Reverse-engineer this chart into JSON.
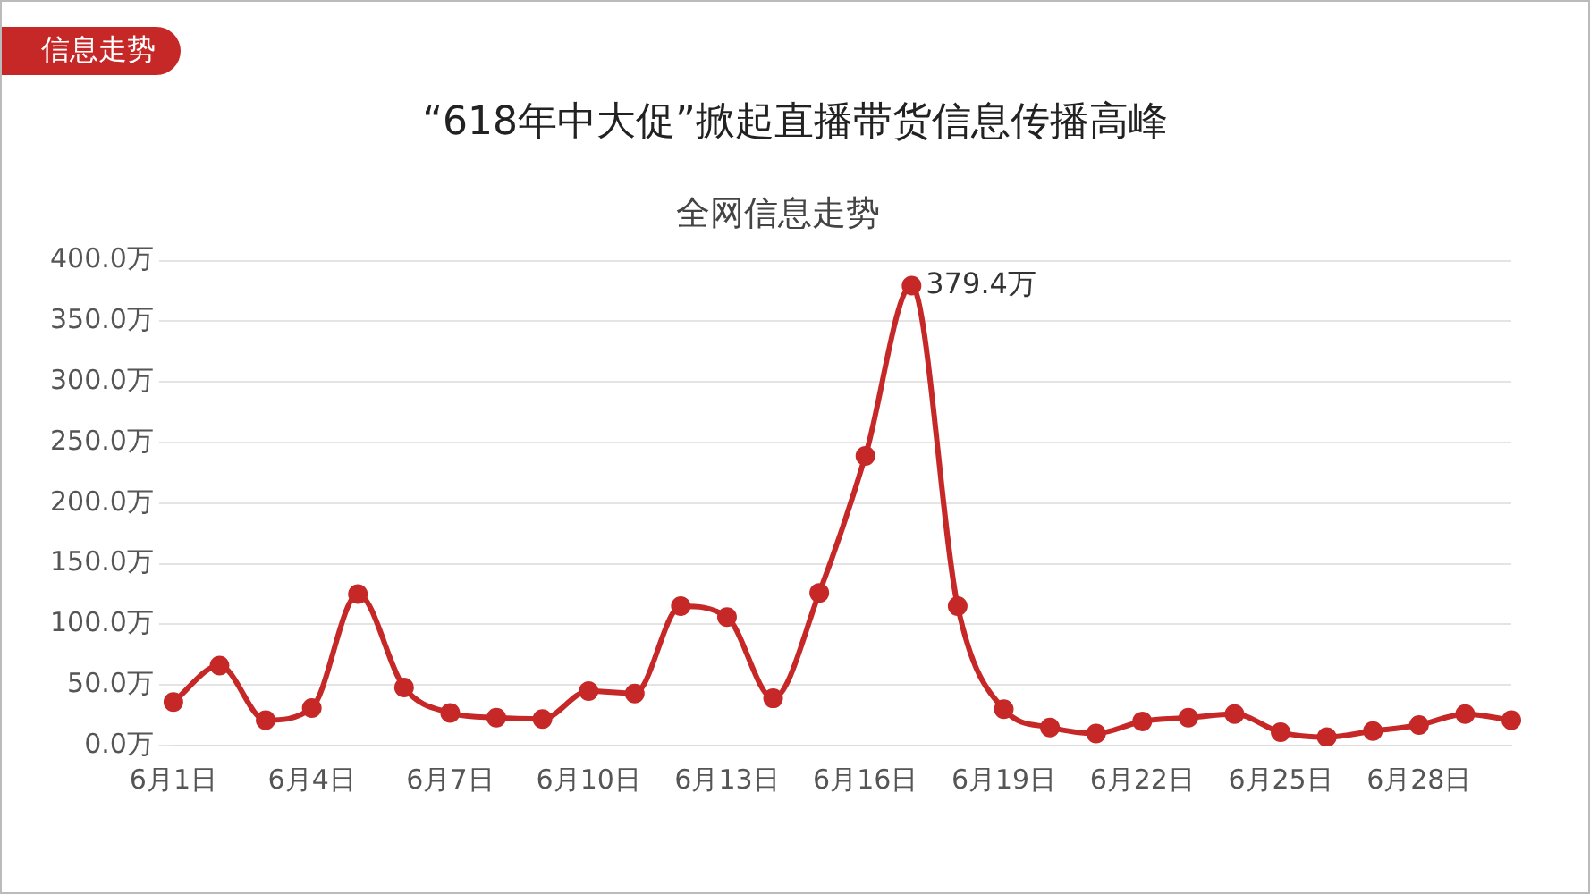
{
  "chart_data": {
    "type": "line",
    "title": "“618年中大促”掀起直播带货信息传播高峰",
    "subtitle": "全网信息走势",
    "annotations": [
      "信息走势"
    ],
    "categories": [
      "6月1日",
      null,
      null,
      "6月4日",
      null,
      null,
      "6月7日",
      null,
      null,
      "6月10日",
      null,
      null,
      "6月13日",
      null,
      null,
      "6月16日",
      null,
      null,
      "6月19日",
      null,
      null,
      "6月22日",
      null,
      null,
      "6月25日",
      null,
      null,
      "6月28日",
      null,
      null
    ],
    "series": [
      {
        "color": "#c62828",
        "values": [
          36,
          66,
          21,
          31,
          125,
          48,
          27,
          23,
          22,
          45,
          43,
          115,
          106,
          39,
          126,
          239,
          379.4,
          115,
          30,
          15,
          10,
          20,
          23,
          26,
          11,
          7,
          12,
          17,
          26,
          21
        ],
        "value_labels": [
          null,
          null,
          null,
          null,
          null,
          null,
          null,
          null,
          null,
          null,
          null,
          null,
          null,
          null,
          null,
          null,
          "379.4万",
          null,
          null,
          null,
          null,
          null,
          null,
          null,
          null,
          null,
          null,
          null,
          null,
          null
        ]
      }
    ],
    "ylim": [
      0,
      400
    ],
    "yticks": [
      {
        "value": 0,
        "label": "0.0万"
      },
      {
        "value": 50,
        "label": "50.0万"
      },
      {
        "value": 100,
        "label": "100.0万"
      },
      {
        "value": 150,
        "label": "150.0万"
      },
      {
        "value": 200,
        "label": "200.0万"
      },
      {
        "value": 250,
        "label": "250.0万"
      },
      {
        "value": 300,
        "label": "300.0万"
      },
      {
        "value": 350,
        "label": "350.0万"
      },
      {
        "value": 400,
        "label": "400.0万"
      }
    ],
    "grid": "y",
    "legend": false,
    "marker": "circle",
    "line_style": "solid"
  }
}
